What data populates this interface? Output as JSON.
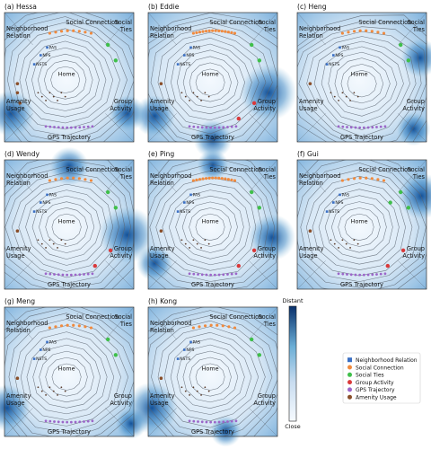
{
  "figure": {
    "panels": [
      {
        "title": "(a) Hessa",
        "variant": 0
      },
      {
        "title": "(b) Eddie",
        "variant": 1
      },
      {
        "title": "(c) Heng",
        "variant": 2
      },
      {
        "title": "(d) Wendy",
        "variant": 3
      },
      {
        "title": "(e) Ping",
        "variant": 4
      },
      {
        "title": "(f) Gui",
        "variant": 5
      },
      {
        "title": "(g) Meng",
        "variant": 6
      },
      {
        "title": "(h) Kong",
        "variant": 7
      }
    ],
    "labels": {
      "social_connection": "Social Connection",
      "social_ties_1": "Social",
      "social_ties_2": "Ties",
      "neighborhood_1": "Neighborhood",
      "neighborhood_2": "Relation",
      "amenity_1": "Amenity",
      "amenity_2": "Usage",
      "group_1": "Group",
      "group_2": "Activity",
      "gps": "GPS Trajectory",
      "home": "Home",
      "pas": "PAS",
      "nps": "NPS",
      "nsts": "NSTS"
    },
    "colorbar": {
      "top_label": "Distant",
      "bottom_label": "Close"
    },
    "legend": [
      {
        "label": "Neighborhood Relation",
        "color": "#3a6fc4",
        "shape": "square"
      },
      {
        "label": "Social Connection",
        "color": "#f08a3e",
        "shape": "circle"
      },
      {
        "label": "Social Ties",
        "color": "#3fbf4a",
        "shape": "circle"
      },
      {
        "label": "Group Activity",
        "color": "#d9393a",
        "shape": "circle"
      },
      {
        "label": "GPS Trajectory",
        "color": "#9b66c9",
        "shape": "circle"
      },
      {
        "label": "Amenity Usage",
        "color": "#8a4f2a",
        "shape": "circle"
      }
    ],
    "colors": {
      "dark_blue": "#08306b",
      "light_blue": "#eef5fc",
      "contour": "#5a6470"
    }
  }
}
